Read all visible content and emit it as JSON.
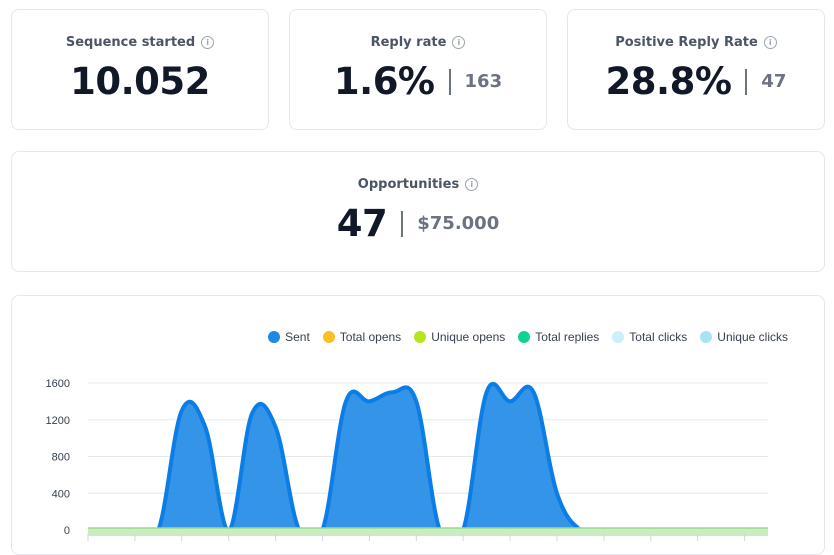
{
  "stats": {
    "sequence": {
      "title": "Sequence started",
      "value": "10.052"
    },
    "reply": {
      "title": "Reply rate",
      "value": "1.6%",
      "count": "163"
    },
    "positive": {
      "title": "Positive Reply Rate",
      "value": "28.8%",
      "count": "47"
    },
    "opportunities": {
      "title": "Opportunities",
      "value": "47",
      "amount": "$75.000"
    }
  },
  "info_icon_glyph": "i",
  "chart_data": {
    "type": "area",
    "series": [
      {
        "name": "Sent",
        "color": "#1e88e5"
      },
      {
        "name": "Total opens",
        "color": "#fbbf24"
      },
      {
        "name": "Unique opens",
        "color": "#b5e61d"
      },
      {
        "name": "Total replies",
        "color": "#10d48e"
      },
      {
        "name": "Total clicks",
        "color": "#cdeff7"
      },
      {
        "name": "Unique clicks",
        "color": "#a7e3f2"
      }
    ],
    "sent_values": [
      0,
      0,
      0,
      0,
      1300,
      1120,
      0,
      1270,
      1120,
      0,
      0,
      1400,
      1400,
      1500,
      1400,
      0,
      0,
      1500,
      1400,
      1500,
      400,
      0,
      0,
      0,
      0,
      0,
      0,
      0,
      0,
      0
    ],
    "yticks": [
      0,
      400,
      800,
      1200,
      1600
    ],
    "ylim": [
      0,
      1600
    ],
    "grid": true,
    "legend_position": "top-right"
  }
}
